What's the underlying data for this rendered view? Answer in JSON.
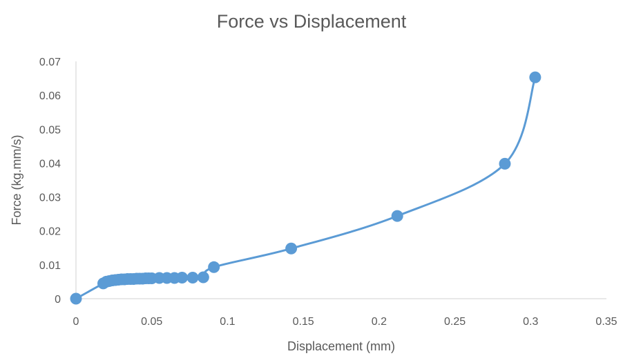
{
  "chart_data": {
    "type": "scatter",
    "title": "Force vs Displacement",
    "xlabel": "Displacement (mm)",
    "ylabel": "Force (kg.mm/s)",
    "xlim": [
      0,
      0.35
    ],
    "ylim": [
      0,
      0.07
    ],
    "x_ticks": [
      "0",
      "0.05",
      "0.1",
      "0.15",
      "0.2",
      "0.25",
      "0.3",
      "0.35"
    ],
    "y_ticks": [
      "0",
      "0.01",
      "0.02",
      "0.03",
      "0.04",
      "0.05",
      "0.06",
      "0.07"
    ],
    "grid": false,
    "legend": "none",
    "line_style": "smoothed",
    "color": "#5b9bd5",
    "series": [
      {
        "x": [
          0,
          0.018,
          0.02,
          0.022,
          0.024,
          0.026,
          0.028,
          0.03,
          0.032,
          0.034,
          0.036,
          0.038,
          0.04,
          0.042,
          0.044,
          0.046,
          0.048,
          0.05,
          0.055,
          0.06,
          0.065,
          0.07,
          0.077,
          0.084,
          0.091,
          0.142,
          0.212,
          0.283,
          0.303
        ],
        "y": [
          0,
          0.0045,
          0.005,
          0.0052,
          0.0054,
          0.0055,
          0.0056,
          0.0057,
          0.0057,
          0.0058,
          0.0058,
          0.0058,
          0.0059,
          0.0059,
          0.0059,
          0.006,
          0.006,
          0.006,
          0.0061,
          0.0061,
          0.0061,
          0.0062,
          0.0062,
          0.0063,
          0.0093,
          0.0148,
          0.0244,
          0.0398,
          0.0653
        ]
      }
    ]
  }
}
